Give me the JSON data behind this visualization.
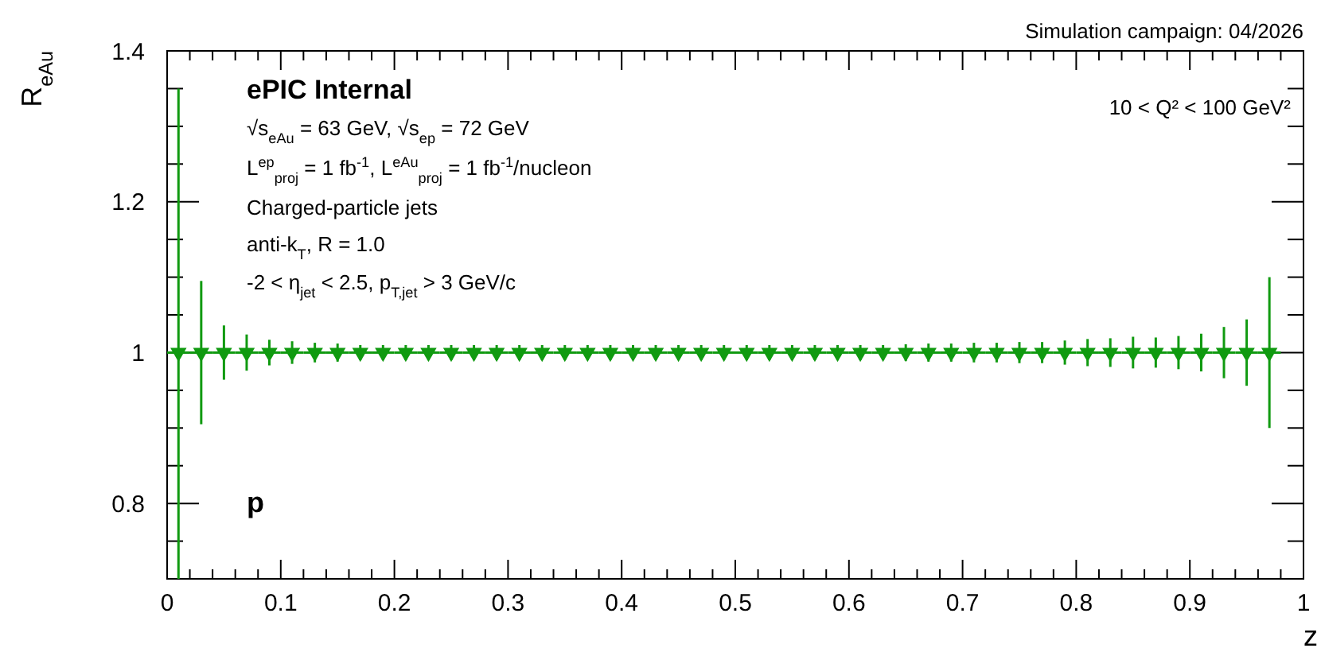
{
  "chart_data": {
    "type": "scatter",
    "xlabel": "z",
    "ylabel": "R$_{eAu}$",
    "annotations": [
      "Simulation campaign: 04/2026",
      "ePIC Internal",
      "√s$_{eAu}$ = 63 GeV, √s$_{ep}$ = 72 GeV",
      "L$^{ep}$$_{proj}$ = 1 fb$^{-1}$, L$^{eAu}$$_{proj}$ = 1 fb$^{-1}$/nucleon",
      "Charged-particle jets",
      "anti-k$_{T}$, R = 1.0",
      "-2 < η$_{jet}$ < 2.5, p$_{T,jet}$ > 3 GeV/c",
      "10 < Q² < 100 GeV²",
      "p"
    ],
    "xlim": [
      0,
      1
    ],
    "ylim": [
      0.7,
      1.4
    ],
    "xticks": [
      0,
      {
        "value": 0.02,
        "label": null
      },
      {
        "value": 0.04,
        "label": null
      },
      {
        "value": 0.06,
        "label": null
      },
      {
        "value": 0.08,
        "label": null
      },
      0.1,
      {
        "value": 0.12,
        "label": null
      },
      {
        "value": 0.14,
        "label": null
      },
      {
        "value": 0.16,
        "label": null
      },
      {
        "value": 0.18,
        "label": null
      },
      0.2,
      {
        "value": 0.22,
        "label": null
      },
      {
        "value": 0.24,
        "label": null
      },
      {
        "value": 0.26,
        "label": null
      },
      {
        "value": 0.28,
        "label": null
      },
      0.3,
      {
        "value": 0.32,
        "label": null
      },
      {
        "value": 0.34,
        "label": null
      },
      {
        "value": 0.36,
        "label": null
      },
      {
        "value": 0.38,
        "label": null
      },
      0.4,
      {
        "value": 0.42,
        "label": null
      },
      {
        "value": 0.44,
        "label": null
      },
      {
        "value": 0.46,
        "label": null
      },
      {
        "value": 0.48,
        "label": null
      },
      0.5,
      {
        "value": 0.52,
        "label": null
      },
      {
        "value": 0.54,
        "label": null
      },
      {
        "value": 0.56,
        "label": null
      },
      {
        "value": 0.58,
        "label": null
      },
      0.6,
      {
        "value": 0.62,
        "label": null
      },
      {
        "value": 0.64,
        "label": null
      },
      {
        "value": 0.66,
        "label": null
      },
      {
        "value": 0.68,
        "label": null
      },
      0.7,
      {
        "value": 0.72,
        "label": null
      },
      {
        "value": 0.74,
        "label": null
      },
      {
        "value": 0.76,
        "label": null
      },
      {
        "value": 0.78,
        "label": null
      },
      0.8,
      {
        "value": 0.82,
        "label": null
      },
      {
        "value": 0.84,
        "label": null
      },
      {
        "value": 0.86,
        "label": null
      },
      {
        "value": 0.88,
        "label": null
      },
      0.9,
      {
        "value": 0.92,
        "label": null
      },
      {
        "value": 0.94,
        "label": null
      },
      {
        "value": 0.96,
        "label": null
      },
      {
        "value": 0.98,
        "label": null
      },
      1
    ],
    "yticks": [
      {
        "value": 0.75,
        "label": null
      },
      0.8,
      {
        "value": 0.85,
        "label": null
      },
      {
        "value": 0.9,
        "label": null
      },
      {
        "value": 0.95,
        "label": null
      },
      1,
      {
        "value": 1.05,
        "label": null
      },
      {
        "value": 1.1,
        "label": null
      },
      {
        "value": 1.15,
        "label": null
      },
      1.2,
      {
        "value": 1.25,
        "label": null
      },
      {
        "value": 1.3,
        "label": null
      },
      {
        "value": 1.35,
        "label": null
      },
      1.4
    ],
    "marker": "triangle",
    "series": [
      {
        "color": "#109a10",
        "x": [
          0.01,
          0.03,
          0.05,
          0.07,
          0.09,
          0.11,
          0.13,
          0.15,
          0.17,
          0.19,
          0.21,
          0.23,
          0.25,
          0.27,
          0.29,
          0.31,
          0.33,
          0.35,
          0.37,
          0.39,
          0.41,
          0.43,
          0.45,
          0.47,
          0.49,
          0.51,
          0.53,
          0.55,
          0.57,
          0.59,
          0.61,
          0.63,
          0.65,
          0.67,
          0.69,
          0.71,
          0.73,
          0.75,
          0.77,
          0.79,
          0.81,
          0.83,
          0.85,
          0.87,
          0.89,
          0.91,
          0.93,
          0.95,
          0.97
        ],
        "values": [
          1,
          1,
          1,
          1,
          1,
          1,
          1,
          1,
          1,
          1,
          1,
          1,
          1,
          1,
          1,
          1,
          1,
          1,
          1,
          1,
          1,
          1,
          1,
          1,
          1,
          1,
          1,
          1,
          1,
          1,
          1,
          1,
          1,
          1,
          1,
          1,
          1,
          1,
          1,
          1,
          1,
          1,
          1,
          1,
          1,
          1,
          1,
          1,
          1
        ],
        "errors": [
          [
            0.7,
            1.35
          ],
          0.095,
          0.036,
          0.024,
          0.017,
          0.015,
          0.013,
          0.012,
          0.01,
          0.01,
          0.01,
          0.01,
          0.01,
          0.01,
          0.01,
          0.01,
          0.01,
          0.01,
          0.01,
          0.01,
          0.01,
          0.01,
          0.01,
          0.01,
          0.01,
          0.01,
          0.01,
          0.01,
          0.01,
          0.01,
          0.01,
          0.01,
          0.011,
          0.012,
          0.012,
          0.013,
          0.013,
          0.014,
          0.014,
          0.016,
          0.018,
          0.019,
          0.021,
          0.02,
          0.022,
          0.025,
          0.034,
          0.044,
          0.1
        ],
        "xerrors": [
          0.01,
          0.01,
          0.01,
          0.01,
          0.01,
          0.01,
          0.01,
          0.01,
          0.01,
          0.01,
          0.01,
          0.01,
          0.01,
          0.01,
          0.01,
          0.01,
          0.01,
          0.01,
          0.01,
          0.01,
          0.01,
          0.01,
          0.01,
          0.01,
          0.01,
          0.01,
          0.01,
          0.01,
          0.01,
          0.01,
          0.01,
          0.01,
          0.01,
          0.01,
          0.01,
          0.01,
          0.01,
          0.01,
          0.01,
          0.01,
          0.01,
          0.01,
          0.01,
          0.01,
          0.01,
          0.01,
          0.01,
          0.01,
          0.01
        ]
      }
    ]
  }
}
